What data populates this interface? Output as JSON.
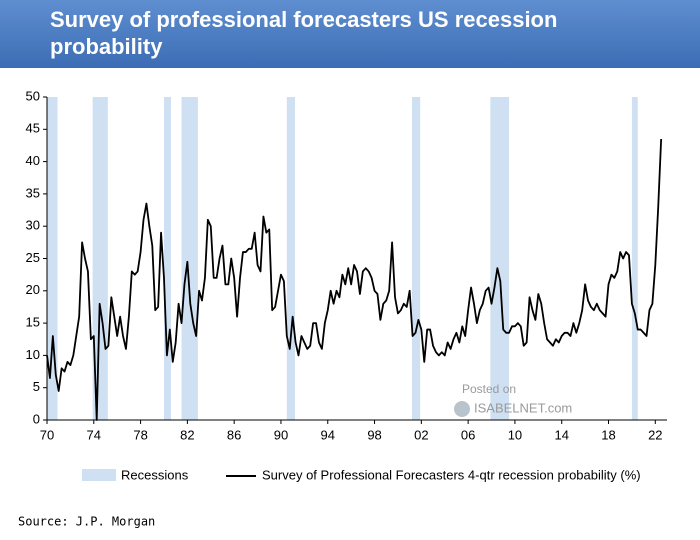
{
  "chart_data": {
    "type": "line",
    "title": "Survey of professional forecasters US recession probability",
    "source": "Source: J.P. Morgan",
    "watermark": [
      "Posted on",
      "ISABELNET.com"
    ],
    "recession_label": "Recessions",
    "recession_color": "#cfe0f3",
    "recessions": [
      [
        1970.0,
        1970.9
      ],
      [
        1973.9,
        1975.2
      ],
      [
        1980.0,
        1980.6
      ],
      [
        1981.5,
        1982.9
      ],
      [
        1990.5,
        1991.2
      ],
      [
        2001.2,
        2001.9
      ],
      [
        2007.9,
        2009.5
      ],
      [
        2020.0,
        2020.5
      ]
    ],
    "xlim": [
      1970,
      2023
    ],
    "xticks": [
      {
        "value": 1970,
        "label": "70"
      },
      {
        "value": 1974,
        "label": "74"
      },
      {
        "value": 1978,
        "label": "78"
      },
      {
        "value": 1982,
        "label": "82"
      },
      {
        "value": 1986,
        "label": "86"
      },
      {
        "value": 1990,
        "label": "90"
      },
      {
        "value": 1994,
        "label": "94"
      },
      {
        "value": 1998,
        "label": "98"
      },
      {
        "value": 2002,
        "label": "02"
      },
      {
        "value": 2006,
        "label": "06"
      },
      {
        "value": 2010,
        "label": "10"
      },
      {
        "value": 2014,
        "label": "14"
      },
      {
        "value": 2018,
        "label": "18"
      },
      {
        "value": 2022,
        "label": "22"
      }
    ],
    "ylim": [
      0,
      50
    ],
    "yticks": [
      0,
      5,
      10,
      15,
      20,
      25,
      30,
      35,
      40,
      45,
      50
    ],
    "x": [
      1970.0,
      1970.25,
      1970.5,
      1970.75,
      1971.0,
      1971.25,
      1971.5,
      1971.75,
      1972.0,
      1972.25,
      1972.5,
      1972.75,
      1973.0,
      1973.25,
      1973.5,
      1973.75,
      1974.0,
      1974.25,
      1974.5,
      1974.75,
      1975.0,
      1975.25,
      1975.5,
      1975.75,
      1976.0,
      1976.25,
      1976.5,
      1976.75,
      1977.0,
      1977.25,
      1977.5,
      1977.75,
      1978.0,
      1978.25,
      1978.5,
      1978.75,
      1979.0,
      1979.25,
      1979.5,
      1979.75,
      1980.0,
      1980.25,
      1980.5,
      1980.75,
      1981.0,
      1981.25,
      1981.5,
      1981.75,
      1982.0,
      1982.25,
      1982.5,
      1982.75,
      1983.0,
      1983.25,
      1983.5,
      1983.75,
      1984.0,
      1984.25,
      1984.5,
      1984.75,
      1985.0,
      1985.25,
      1985.5,
      1985.75,
      1986.0,
      1986.25,
      1986.5,
      1986.75,
      1987.0,
      1987.25,
      1987.5,
      1987.75,
      1988.0,
      1988.25,
      1988.5,
      1988.75,
      1989.0,
      1989.25,
      1989.5,
      1989.75,
      1990.0,
      1990.25,
      1990.5,
      1990.75,
      1991.0,
      1991.25,
      1991.5,
      1991.75,
      1992.0,
      1992.25,
      1992.5,
      1992.75,
      1993.0,
      1993.25,
      1993.5,
      1993.75,
      1994.0,
      1994.25,
      1994.5,
      1994.75,
      1995.0,
      1995.25,
      1995.5,
      1995.75,
      1996.0,
      1996.25,
      1996.5,
      1996.75,
      1997.0,
      1997.25,
      1997.5,
      1997.75,
      1998.0,
      1998.25,
      1998.5,
      1998.75,
      1999.0,
      1999.25,
      1999.5,
      1999.75,
      2000.0,
      2000.25,
      2000.5,
      2000.75,
      2001.0,
      2001.25,
      2001.5,
      2001.75,
      2002.0,
      2002.25,
      2002.5,
      2002.75,
      2003.0,
      2003.25,
      2003.5,
      2003.75,
      2004.0,
      2004.25,
      2004.5,
      2004.75,
      2005.0,
      2005.25,
      2005.5,
      2005.75,
      2006.0,
      2006.25,
      2006.5,
      2006.75,
      2007.0,
      2007.25,
      2007.5,
      2007.75,
      2008.0,
      2008.25,
      2008.5,
      2008.75,
      2009.0,
      2009.25,
      2009.5,
      2009.75,
      2010.0,
      2010.25,
      2010.5,
      2010.75,
      2011.0,
      2011.25,
      2011.5,
      2011.75,
      2012.0,
      2012.25,
      2012.5,
      2012.75,
      2013.0,
      2013.25,
      2013.5,
      2013.75,
      2014.0,
      2014.25,
      2014.5,
      2014.75,
      2015.0,
      2015.25,
      2015.5,
      2015.75,
      2016.0,
      2016.25,
      2016.5,
      2016.75,
      2017.0,
      2017.25,
      2017.5,
      2017.75,
      2018.0,
      2018.25,
      2018.5,
      2018.75,
      2019.0,
      2019.25,
      2019.5,
      2019.75,
      2020.0,
      2020.25,
      2020.5,
      2020.75,
      2021.0,
      2021.25,
      2021.5,
      2021.75,
      2022.0,
      2022.25,
      2022.5
    ],
    "series": [
      {
        "name": "Survey of Professional Forecasters 4-qtr recession probability (%)",
        "color": "#000000",
        "values": [
          10,
          6.5,
          13,
          7,
          4.5,
          8,
          7.5,
          9,
          8.5,
          10,
          13,
          16,
          27.5,
          25,
          23,
          12.5,
          13,
          0,
          18,
          15,
          11,
          11.5,
          19,
          16,
          13,
          16,
          13,
          11,
          16,
          23,
          22.5,
          23,
          26,
          31,
          33.5,
          30,
          27,
          17,
          17.5,
          29,
          22,
          10,
          14,
          9,
          12,
          18,
          15,
          21,
          24.5,
          18,
          15,
          13,
          20,
          18.5,
          22,
          31,
          30,
          22,
          22,
          25,
          27,
          21,
          21,
          25,
          22,
          16,
          22,
          26,
          26,
          26.5,
          26.5,
          29,
          24,
          23,
          31.5,
          29,
          29.5,
          17,
          17.5,
          20,
          22.5,
          21.5,
          13,
          11,
          16,
          12,
          10,
          13,
          12,
          11,
          11.5,
          15,
          15,
          12,
          11,
          15,
          17,
          20,
          18,
          20,
          19,
          22.5,
          21,
          23.5,
          21,
          24,
          23,
          19.5,
          23,
          23.5,
          23,
          22,
          20,
          19.5,
          15.5,
          18,
          18.5,
          20,
          27.5,
          19,
          16.5,
          17,
          18,
          17.5,
          20,
          13,
          13.5,
          15.5,
          14,
          9,
          14,
          14,
          11.5,
          10.5,
          10,
          10.5,
          10,
          12,
          11,
          12.5,
          13.5,
          12,
          14.5,
          13,
          17,
          20.5,
          18,
          15,
          17,
          18,
          20,
          20.5,
          18,
          20.5,
          23.5,
          21.5,
          14,
          13.5,
          13.5,
          14.5,
          14.5,
          15,
          14.5,
          11.5,
          12,
          19,
          17,
          15.5,
          19.5,
          18,
          15,
          12.5,
          12,
          11.5,
          12.5,
          12,
          13,
          13.5,
          13.5,
          13,
          15,
          13.5,
          15,
          17,
          21,
          18.5,
          17.5,
          17,
          18,
          17,
          16.5,
          16,
          21,
          22.5,
          22,
          23,
          26,
          25,
          26,
          25.5,
          18,
          16.5,
          14,
          14,
          13.5,
          13,
          17,
          18,
          24,
          33,
          43.5
        ]
      }
    ]
  }
}
